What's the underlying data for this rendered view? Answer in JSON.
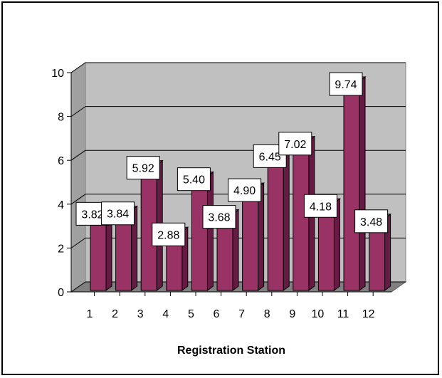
{
  "chart_data": {
    "type": "bar",
    "categories": [
      "1",
      "2",
      "3",
      "4",
      "5",
      "6",
      "7",
      "8",
      "9",
      "10",
      "11",
      "12"
    ],
    "values": [
      3.82,
      3.84,
      5.92,
      2.88,
      5.4,
      3.68,
      4.9,
      6.45,
      7.02,
      4.18,
      9.74,
      3.48
    ],
    "data_labels": [
      "3.82",
      "3.84",
      "5.92",
      "2.88",
      "5.40",
      "3.68",
      "4.90",
      "6.45",
      "7.02",
      "4.18",
      "9.74",
      "3.48"
    ],
    "xlabel": "Registration Station",
    "ylabel": "",
    "ylim": [
      0,
      10
    ],
    "yticks": [
      "0",
      "2",
      "4",
      "6",
      "8",
      "10"
    ],
    "grid": true,
    "bar_color": "#993366",
    "bar_side_color": "#661a44",
    "bar_top_color": "#b8557f",
    "plot_wall_color": "#c0c0c0"
  }
}
